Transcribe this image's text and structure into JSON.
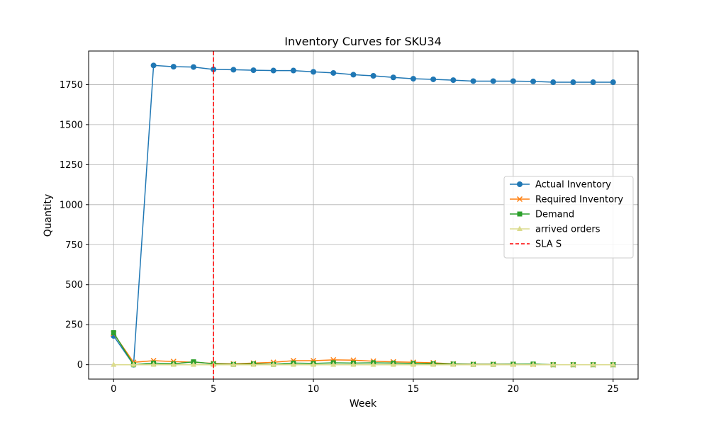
{
  "chart_data": {
    "type": "line",
    "title": "Inventory Curves for SKU34",
    "xlabel": "Week",
    "ylabel": "Quantity",
    "xlim": [
      -1.25,
      26.25
    ],
    "ylim": [
      -90,
      1960
    ],
    "x": [
      0,
      1,
      2,
      3,
      4,
      5,
      6,
      7,
      8,
      9,
      10,
      11,
      12,
      13,
      14,
      15,
      16,
      17,
      18,
      19,
      20,
      21,
      22,
      23,
      24,
      25
    ],
    "xticks": [
      0,
      5,
      10,
      15,
      20,
      25
    ],
    "yticks": [
      0,
      250,
      500,
      750,
      1000,
      1250,
      1500,
      1750
    ],
    "grid": true,
    "legend_position": "center-right",
    "series": [
      {
        "name": "Actual Inventory",
        "color": "#1f77b4",
        "marker": "circle",
        "values": [
          180,
          0,
          1870,
          1862,
          1860,
          1845,
          1843,
          1840,
          1838,
          1838,
          1830,
          1823,
          1812,
          1805,
          1795,
          1787,
          1783,
          1778,
          1772,
          1772,
          1772,
          1770,
          1765,
          1765,
          1765,
          1765
        ]
      },
      {
        "name": "Required Inventory",
        "color": "#ff7f0e",
        "marker": "x",
        "values": [
          195,
          15,
          25,
          20,
          15,
          8,
          5,
          10,
          15,
          25,
          25,
          30,
          28,
          22,
          18,
          15,
          12,
          5,
          3,
          3,
          3,
          2,
          0,
          0,
          0,
          0
        ]
      },
      {
        "name": "Demand",
        "color": "#2ca02c",
        "marker": "square",
        "values": [
          200,
          0,
          10,
          5,
          18,
          5,
          2,
          5,
          2,
          10,
          8,
          12,
          10,
          12,
          10,
          8,
          6,
          4,
          2,
          2,
          3,
          4,
          0,
          0,
          0,
          0
        ]
      },
      {
        "name": "arrived orders",
        "color": "#dbdb8d",
        "marker": "triangle",
        "values": [
          0,
          0,
          0,
          0,
          0,
          0,
          0,
          0,
          0,
          0,
          0,
          0,
          0,
          0,
          0,
          0,
          0,
          0,
          0,
          0,
          0,
          0,
          0,
          0,
          0,
          0
        ]
      }
    ],
    "vlines": [
      {
        "name": "SLA S",
        "x": 5,
        "color": "#ff0000",
        "style": "dashed"
      }
    ]
  }
}
